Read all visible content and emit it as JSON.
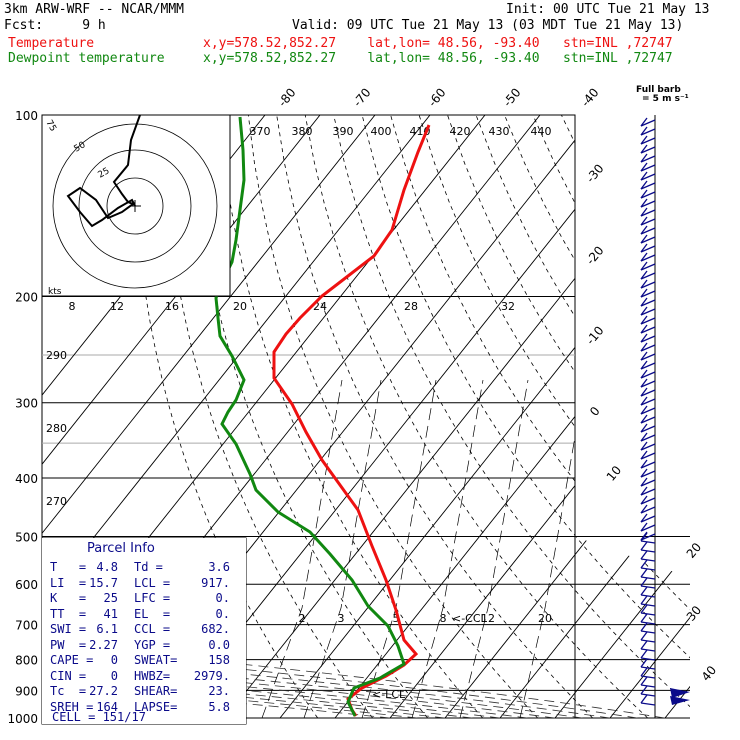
{
  "header": {
    "line1_left": "3km ARW-WRF -- NCAR/MMM",
    "line1_right": "Init: 00 UTC Tue 21 May 13",
    "line2_left": "Fcst:     9 h",
    "line2_right": "Valid: 09 UTC Tue 21 May 13 (03 MDT Tue 21 May 13)",
    "temp_label": "Temperature",
    "temp_info": "x,y=578.52,852.27    lat,lon= 48.56, -93.40   stn=INL ,72747",
    "dew_label": "Dewpoint temperature",
    "dew_info": "x,y=578.52,852.27    lat,lon= 48.56, -93.40   stn=INL ,72747"
  },
  "barb_key": {
    "line1": "Full barb",
    "line2": "= 5 m s⁻¹"
  },
  "colors": {
    "temperature": "#ee1111",
    "dewpoint": "#118811",
    "hodograph": "#000000",
    "barbs": "#0b0b8a"
  },
  "chart_data": {
    "type": "skew-t log-p",
    "pressure_levels": [
      "100",
      "200",
      "300",
      "400",
      "500",
      "600",
      "700",
      "800",
      "900",
      "1000"
    ],
    "isotherm_labels_top": [
      "-80",
      "-70",
      "-60",
      "-50",
      "-40"
    ],
    "isotherm_labels_right": [
      "-30",
      "-20",
      "-10",
      "0",
      "10",
      "20",
      "30",
      "40"
    ],
    "theta_labels_top": [
      "370",
      "380",
      "390",
      "400",
      "410",
      "420",
      "430",
      "440"
    ],
    "theta_labels_left": [
      "290",
      "280",
      "270"
    ],
    "mixing_ratio_labels": [
      "2",
      "3",
      "5",
      "8",
      "12",
      "20"
    ],
    "ccl_label": "<-CCL",
    "lcl_label": "<-LCL",
    "series": [
      {
        "name": "Temperature",
        "p": [
          100,
          150,
          175,
          200,
          225,
          250,
          270,
          300,
          350,
          400,
          450,
          500,
          550,
          600,
          650,
          700,
          750,
          785,
          800,
          850,
          900,
          925,
          950
        ],
        "t": [
          -57,
          -57,
          -55,
          -51,
          -49,
          -48,
          -48,
          -42,
          -33,
          -25,
          -16,
          -10,
          -5,
          -1,
          2,
          4,
          7,
          9,
          8,
          5,
          2,
          0,
          -1
        ]
      },
      {
        "name": "Dewpoint temperature",
        "p": [
          100,
          150,
          175,
          200,
          225,
          250,
          270,
          300,
          340,
          400,
          450,
          500,
          550,
          600,
          650,
          700,
          750,
          785,
          800,
          850,
          880,
          900,
          925,
          950
        ],
        "t": [
          -89,
          -90,
          -91,
          -92,
          -92,
          -84,
          -76,
          -74,
          -71,
          -60,
          -47,
          -30,
          -19,
          -10,
          -5,
          1,
          4,
          6,
          5,
          -3,
          -6,
          -5,
          -3,
          -2
        ]
      }
    ],
    "hodograph": {
      "rings": [
        "50",
        "25",
        "75"
      ],
      "speed_labels": [
        "50",
        "25",
        "75"
      ],
      "kts_label": "kts"
    },
    "inset_temp_axis": [
      "8",
      "12",
      "16",
      "20",
      "24",
      "28",
      "32"
    ]
  },
  "parcel_info": {
    "title": "Parcel Info",
    "rows": [
      [
        "T   =",
        "4.8",
        "Td =",
        "3.6"
      ],
      [
        "LI  =",
        "15.7",
        "LCL =",
        "917."
      ],
      [
        "K   =",
        "25",
        "LFC =",
        "0."
      ],
      [
        "TT  =",
        "41",
        "EL  =",
        "0."
      ],
      [
        "SWI =",
        "6.1",
        "CCL =",
        "682."
      ],
      [
        "PW  =",
        "2.27",
        "YGP =",
        "0.0"
      ],
      [
        "CAPE =",
        "0",
        "SWEAT=",
        "158"
      ],
      [
        "CIN =",
        "0",
        "HWBZ=",
        "2979."
      ],
      [
        "Tc  =",
        "27.2",
        "SHEAR=",
        "23."
      ],
      [
        "SREH =",
        "164",
        "LAPSE=",
        "5.8"
      ]
    ],
    "cell": "CELL = 151/17"
  }
}
